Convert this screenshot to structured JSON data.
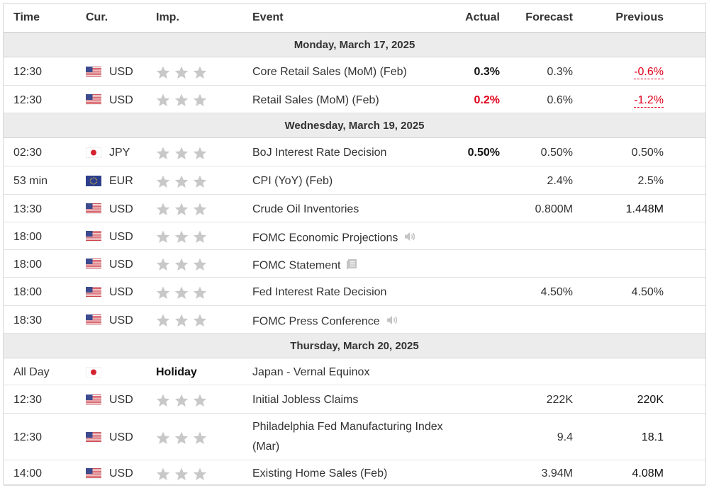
{
  "headers": {
    "time": "Time",
    "cur": "Cur.",
    "imp": "Imp.",
    "event": "Event",
    "actual": "Actual",
    "forecast": "Forecast",
    "previous": "Previous"
  },
  "colors": {
    "negative": "#e0001a",
    "star": "#c8c8c8",
    "day_band": "#ececec"
  },
  "days": [
    {
      "label": "Monday, March 17, 2025",
      "events": [
        {
          "time": "12:30",
          "flag": "us-flag-icon",
          "cur": "USD",
          "imp_stars": 3,
          "event": "Core Retail Sales (MoM) (Feb)",
          "actual": "0.3%",
          "actual_color": "#111111",
          "forecast": "0.3%",
          "previous": "-0.6%",
          "previous_negative": true
        },
        {
          "time": "12:30",
          "flag": "us-flag-icon",
          "cur": "USD",
          "imp_stars": 3,
          "event": "Retail Sales (MoM) (Feb)",
          "actual": "0.2%",
          "actual_color": "#e0001a",
          "forecast": "0.6%",
          "previous": "-1.2%",
          "previous_negative": true
        }
      ]
    },
    {
      "label": "Wednesday, March 19, 2025",
      "events": [
        {
          "time": "02:30",
          "flag": "jp-flag-icon",
          "cur": "JPY",
          "imp_stars": 3,
          "event": "BoJ Interest Rate Decision",
          "actual": "0.50%",
          "actual_color": "#111111",
          "forecast": "0.50%",
          "previous": "0.50%"
        },
        {
          "time": "53 min",
          "flag": "eu-flag-icon",
          "cur": "EUR",
          "imp_stars": 3,
          "event": "CPI (YoY) (Feb)",
          "actual": "",
          "forecast": "2.4%",
          "previous": "2.5%"
        },
        {
          "time": "13:30",
          "flag": "us-flag-icon",
          "cur": "USD",
          "imp_stars": 3,
          "event": "Crude Oil Inventories",
          "actual": "",
          "forecast": "0.800M",
          "previous": "1.448M",
          "previous_bold": true
        },
        {
          "time": "18:00",
          "flag": "us-flag-icon",
          "cur": "USD",
          "imp_stars": 3,
          "event": "FOMC Economic Projections",
          "icon": "speaker-icon",
          "actual": "",
          "forecast": "",
          "previous": ""
        },
        {
          "time": "18:00",
          "flag": "us-flag-icon",
          "cur": "USD",
          "imp_stars": 3,
          "event": "FOMC Statement",
          "icon": "document-icon",
          "actual": "",
          "forecast": "",
          "previous": ""
        },
        {
          "time": "18:00",
          "flag": "us-flag-icon",
          "cur": "USD",
          "imp_stars": 3,
          "event": "Fed Interest Rate Decision",
          "actual": "",
          "forecast": "4.50%",
          "previous": "4.50%"
        },
        {
          "time": "18:30",
          "flag": "us-flag-icon",
          "cur": "USD",
          "imp_stars": 3,
          "event": "FOMC Press Conference",
          "icon": "speaker-icon",
          "actual": "",
          "forecast": "",
          "previous": ""
        }
      ]
    },
    {
      "label": "Thursday, March 20, 2025",
      "events": [
        {
          "time": "All Day",
          "flag": "jp-flag-icon",
          "cur": "",
          "imp_text": "Holiday",
          "event": "Japan - Vernal Equinox",
          "actual": "",
          "forecast": "",
          "previous": ""
        },
        {
          "time": "12:30",
          "flag": "us-flag-icon",
          "cur": "USD",
          "imp_stars": 3,
          "event": "Initial Jobless Claims",
          "actual": "",
          "forecast": "222K",
          "previous": "220K",
          "previous_bold": true
        },
        {
          "time": "12:30",
          "flag": "us-flag-icon",
          "cur": "USD",
          "imp_stars": 3,
          "event": "Philadelphia Fed Manufacturing Index (Mar)",
          "actual": "",
          "forecast": "9.4",
          "previous": "18.1",
          "previous_bold": true
        },
        {
          "time": "14:00",
          "flag": "us-flag-icon",
          "cur": "USD",
          "imp_stars": 3,
          "event": "Existing Home Sales (Feb)",
          "actual": "",
          "forecast": "3.94M",
          "previous": "4.08M",
          "previous_bold": true
        }
      ]
    }
  ]
}
